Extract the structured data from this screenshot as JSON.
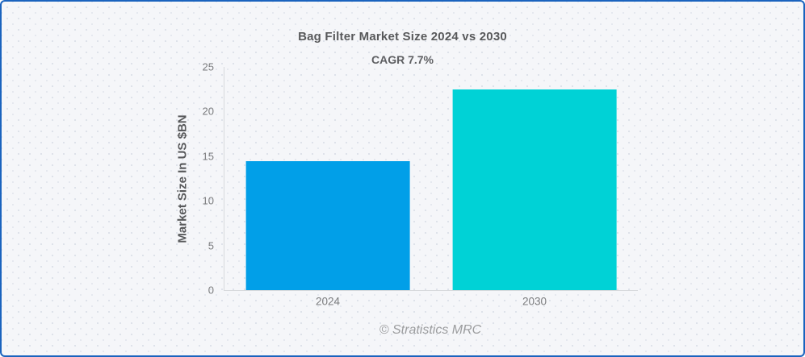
{
  "header": {
    "title": "Bag Filter Market Size 2024 vs 2030",
    "subtitle": "CAGR 7.7%"
  },
  "footer": {
    "attribution": "© Stratistics MRC"
  },
  "colors": {
    "card_border": "#1A63BE",
    "card_background": "#F5F6F9",
    "bar_2024": "#019FE8",
    "bar_2030": "#00D2D6",
    "axis_line": "#D7D9DC",
    "title_text": "#58595B",
    "axis_text": "#7B7C7E",
    "footer_text": "#9B9C9E"
  },
  "chart_data": {
    "type": "bar",
    "title": "Bag Filter Market Size 2024 vs 2030",
    "subtitle": "CAGR 7.7%",
    "categories": [
      "2024",
      "2030"
    ],
    "values": [
      14.4,
      22.5
    ],
    "bar_colors": [
      "#019FE8",
      "#00D2D6"
    ],
    "xlabel": "",
    "ylabel": "Market Size In US $BN",
    "ylim": [
      0,
      25
    ],
    "yticks": [
      0,
      5,
      10,
      15,
      20,
      25
    ],
    "grid": false,
    "legend": false,
    "annotation": "CAGR 7.7%"
  }
}
